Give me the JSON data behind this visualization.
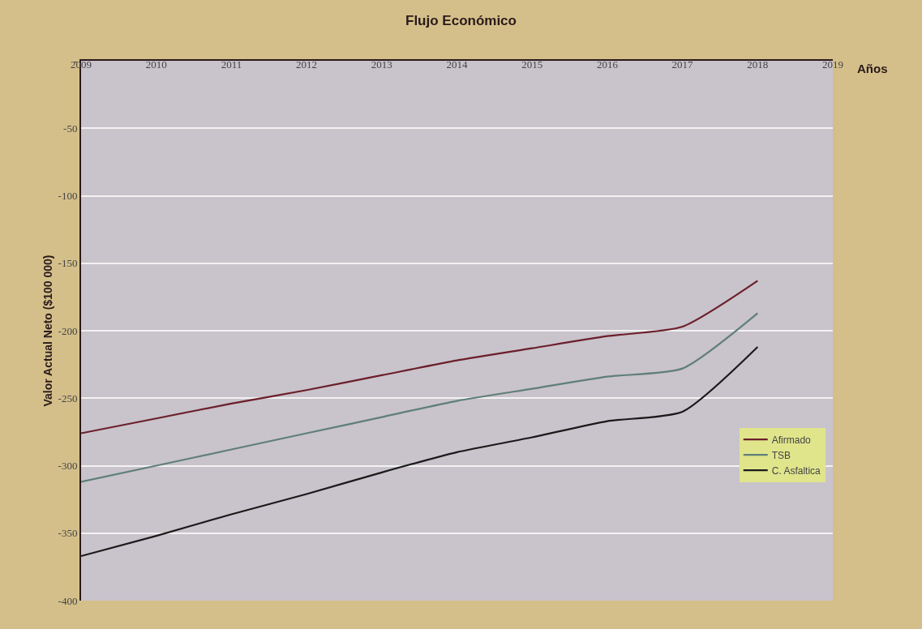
{
  "chart_data": {
    "type": "line",
    "title": "Flujo Económico",
    "xlabel": "Años",
    "ylabel": "Valor Actual Neto ($100 000)",
    "x": [
      2009,
      2010,
      2011,
      2012,
      2013,
      2014,
      2015,
      2016,
      2017,
      2018
    ],
    "series": [
      {
        "name": "Afirmado",
        "color": "#6b1f2a",
        "values": [
          -276,
          -265,
          -254,
          -244,
          -233,
          -222,
          -213,
          -204,
          -197,
          -163
        ]
      },
      {
        "name": "TSB",
        "color": "#5f7f78",
        "values": [
          -312,
          -300,
          -288,
          -276,
          -264,
          -252,
          -243,
          -234,
          -228,
          -187
        ]
      },
      {
        "name": "C. Asfaltica",
        "color": "#1a1a1a",
        "values": [
          -367,
          -352,
          -336,
          -321,
          -305,
          -290,
          -279,
          -267,
          -260,
          -212
        ]
      }
    ],
    "xlim": [
      2009,
      2019
    ],
    "xticks": [
      2009,
      2010,
      2011,
      2012,
      2013,
      2014,
      2015,
      2016,
      2017,
      2018,
      2019
    ],
    "ylim": [
      -400,
      0
    ],
    "yticks": [
      {
        "value": 0,
        "label": "-"
      },
      -50,
      -100,
      -150,
      -200,
      -250,
      -300,
      -350,
      -400
    ],
    "grid": "y",
    "legend": "right",
    "marker": "none",
    "line_style": "solid"
  }
}
